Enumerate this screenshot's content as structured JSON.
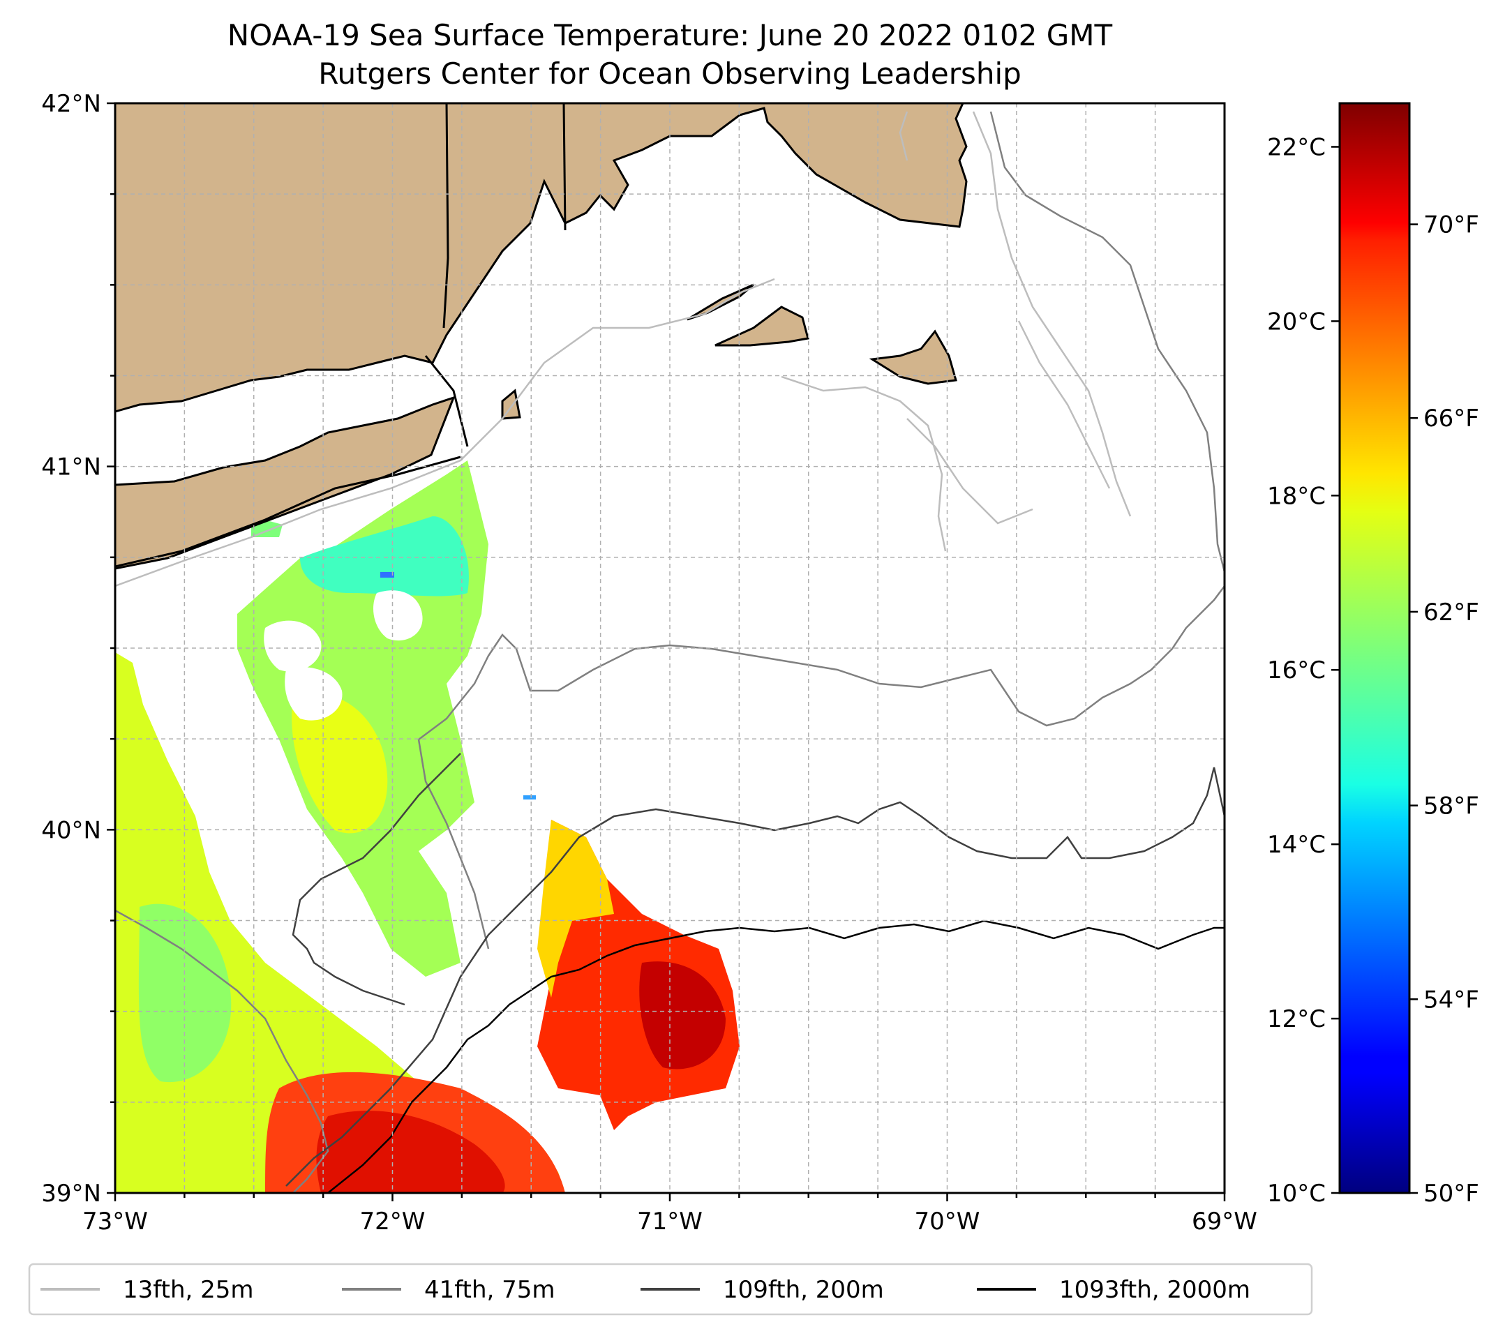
{
  "title": "NOAA-19 Sea Surface Temperature: June 20 2022 0102 GMT",
  "subtitle": "Rutgers Center for Ocean Observing Leadership",
  "lon_ticks": [
    {
      "value": -73,
      "label": "73°W"
    },
    {
      "value": -72,
      "label": "72°W"
    },
    {
      "value": -71,
      "label": "71°W"
    },
    {
      "value": -70,
      "label": "70°W"
    },
    {
      "value": -69,
      "label": "69°W"
    }
  ],
  "lat_ticks": [
    {
      "value": 42,
      "label": "42°N"
    },
    {
      "value": 41,
      "label": "41°N"
    },
    {
      "value": 40,
      "label": "40°N"
    },
    {
      "value": 39,
      "label": "39°N"
    }
  ],
  "colorbar": {
    "celsius": [
      {
        "value": 22,
        "label": "22°C"
      },
      {
        "value": 20,
        "label": "20°C"
      },
      {
        "value": 18,
        "label": "18°C"
      },
      {
        "value": 16,
        "label": "16°C"
      },
      {
        "value": 14,
        "label": "14°C"
      },
      {
        "value": 12,
        "label": "12°C"
      },
      {
        "value": 10,
        "label": "10°C"
      }
    ],
    "fahrenheit": [
      {
        "value": 70,
        "label": "70°F"
      },
      {
        "value": 66,
        "label": "66°F"
      },
      {
        "value": 62,
        "label": "62°F"
      },
      {
        "value": 58,
        "label": "58°F"
      },
      {
        "value": 54,
        "label": "54°F"
      },
      {
        "value": 50,
        "label": "50°F"
      }
    ],
    "colormap": "jet"
  },
  "legend": [
    {
      "label": "13fth, 25m",
      "color": "#bdbdbd"
    },
    {
      "label": "41fth, 75m",
      "color": "#808080"
    },
    {
      "label": "109fth, 200m",
      "color": "#404040"
    },
    {
      "label": "1093fth, 2000m",
      "color": "#000000"
    }
  ],
  "colors": {
    "land": "#d2b48c",
    "coast": "#000000",
    "grid": "#b0b0b0"
  }
}
